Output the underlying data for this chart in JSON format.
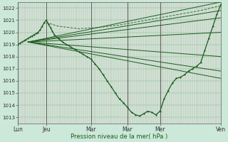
{
  "bg_color": "#cce8d8",
  "grid_color_v": "#c8a0a0",
  "grid_color_h": "#aacaaa",
  "line_color": "#1a5c20",
  "ylim": [
    1012.5,
    1022.5
  ],
  "yticks": [
    1013,
    1014,
    1015,
    1016,
    1017,
    1018,
    1019,
    1020,
    1021,
    1022
  ],
  "xlabel": "Pression niveau de la mer( hPa )",
  "xtick_labels": [
    "Lun",
    "Jeu",
    "Mar",
    "Mar",
    "Mer",
    "Ven"
  ],
  "xtick_pos": [
    0.0,
    0.14,
    0.36,
    0.54,
    0.7,
    1.0
  ],
  "figsize": [
    3.2,
    2.0
  ],
  "dpi": 100,
  "n_vgrid": 100,
  "fan_lines": [
    {
      "x": [
        0.05,
        1.0
      ],
      "y": [
        1019.2,
        1022.5
      ]
    },
    {
      "x": [
        0.05,
        1.0
      ],
      "y": [
        1019.2,
        1021.2
      ]
    },
    {
      "x": [
        0.05,
        1.0
      ],
      "y": [
        1019.2,
        1020.0
      ]
    },
    {
      "x": [
        0.05,
        1.0
      ],
      "y": [
        1019.2,
        1018.0
      ]
    },
    {
      "x": [
        0.05,
        1.0
      ],
      "y": [
        1019.2,
        1016.8
      ]
    },
    {
      "x": [
        0.05,
        1.0
      ],
      "y": [
        1019.2,
        1016.2
      ]
    },
    {
      "x": [
        0.05,
        1.0
      ],
      "y": [
        1019.2,
        1021.8
      ]
    }
  ],
  "detailed_line": {
    "x": [
      0.0,
      0.01,
      0.02,
      0.03,
      0.04,
      0.05,
      0.06,
      0.07,
      0.08,
      0.09,
      0.1,
      0.11,
      0.12,
      0.13,
      0.14,
      0.15,
      0.16,
      0.17,
      0.18,
      0.2,
      0.22,
      0.24,
      0.26,
      0.28,
      0.3,
      0.32,
      0.34,
      0.36,
      0.38,
      0.4,
      0.42,
      0.44,
      0.46,
      0.48,
      0.5,
      0.52,
      0.54,
      0.56,
      0.58,
      0.6,
      0.62,
      0.64,
      0.66,
      0.68,
      0.7,
      0.72,
      0.74,
      0.76,
      0.78,
      0.8,
      0.82,
      0.84,
      0.86,
      0.88,
      0.9,
      0.92,
      0.94,
      0.96,
      0.98,
      1.0
    ],
    "y": [
      1019.0,
      1019.1,
      1019.2,
      1019.3,
      1019.4,
      1019.5,
      1019.6,
      1019.7,
      1019.8,
      1019.9,
      1020.0,
      1020.2,
      1020.5,
      1020.8,
      1021.0,
      1020.7,
      1020.4,
      1020.1,
      1019.8,
      1019.5,
      1019.2,
      1019.0,
      1018.8,
      1018.6,
      1018.4,
      1018.2,
      1018.0,
      1017.8,
      1017.4,
      1017.0,
      1016.5,
      1016.0,
      1015.5,
      1015.0,
      1014.5,
      1014.2,
      1013.8,
      1013.4,
      1013.2,
      1013.1,
      1013.3,
      1013.5,
      1013.4,
      1013.2,
      1013.5,
      1014.5,
      1015.2,
      1015.8,
      1016.2,
      1016.3,
      1016.5,
      1016.8,
      1017.0,
      1017.2,
      1017.5,
      1018.5,
      1019.5,
      1020.5,
      1021.5,
      1022.3
    ]
  },
  "upper_dashed_line": {
    "x": [
      0.14,
      0.2,
      0.3,
      0.4,
      0.5,
      0.6,
      0.7,
      0.8,
      0.9,
      1.0
    ],
    "y": [
      1020.8,
      1020.5,
      1020.3,
      1020.4,
      1020.6,
      1020.9,
      1021.2,
      1021.5,
      1021.8,
      1022.2
    ]
  }
}
